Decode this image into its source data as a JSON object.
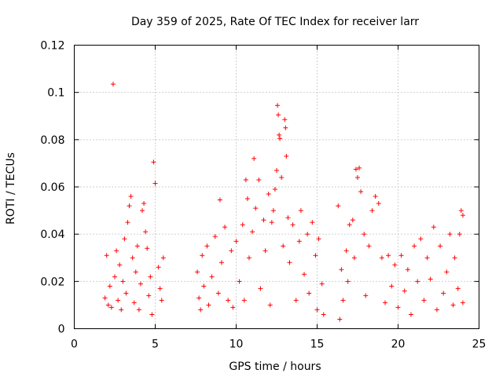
{
  "chart_data": {
    "type": "scatter",
    "title": "Day 359 of 2025, Rate Of TEC Index for receiver larr",
    "xlabel": "GPS time / hours",
    "ylabel": "ROTI / TECUs",
    "xlim": [
      0,
      25
    ],
    "ylim": [
      0,
      0.12
    ],
    "x_ticks": [
      "0",
      "5",
      "10",
      "15",
      "20",
      "25"
    ],
    "y_ticks": [
      "0",
      "0.02",
      "0.04",
      "0.06",
      "0.08",
      "0.1",
      "0.12"
    ],
    "grid": true,
    "marker": "+",
    "color": "#ff0000",
    "series": [
      {
        "points": [
          [
            1.9,
            0.013
          ],
          [
            2.0,
            0.031
          ],
          [
            2.1,
            0.01
          ],
          [
            2.2,
            0.018
          ],
          [
            2.3,
            0.009
          ],
          [
            2.4,
            0.1035
          ],
          [
            2.5,
            0.022
          ],
          [
            2.6,
            0.033
          ],
          [
            2.7,
            0.012
          ],
          [
            2.8,
            0.027
          ],
          [
            2.9,
            0.008
          ],
          [
            3.0,
            0.02
          ],
          [
            3.1,
            0.038
          ],
          [
            3.2,
            0.015
          ],
          [
            3.3,
            0.045
          ],
          [
            3.4,
            0.052
          ],
          [
            3.5,
            0.056
          ],
          [
            3.6,
            0.03
          ],
          [
            3.7,
            0.011
          ],
          [
            3.8,
            0.024
          ],
          [
            3.9,
            0.035
          ],
          [
            4.0,
            0.008
          ],
          [
            4.1,
            0.019
          ],
          [
            4.2,
            0.05
          ],
          [
            4.3,
            0.053
          ],
          [
            4.4,
            0.041
          ],
          [
            4.5,
            0.034
          ],
          [
            4.6,
            0.014
          ],
          [
            4.7,
            0.022
          ],
          [
            4.8,
            0.006
          ],
          [
            4.9,
            0.0705
          ],
          [
            5.0,
            0.0615
          ],
          [
            5.2,
            0.026
          ],
          [
            5.3,
            0.017
          ],
          [
            5.4,
            0.012
          ],
          [
            5.5,
            0.03
          ],
          [
            7.6,
            0.024
          ],
          [
            7.7,
            0.013
          ],
          [
            7.8,
            0.008
          ],
          [
            7.9,
            0.031
          ],
          [
            8.0,
            0.018
          ],
          [
            8.2,
            0.035
          ],
          [
            8.3,
            0.01
          ],
          [
            8.5,
            0.022
          ],
          [
            8.7,
            0.039
          ],
          [
            8.9,
            0.015
          ],
          [
            9.0,
            0.0545
          ],
          [
            9.1,
            0.028
          ],
          [
            9.3,
            0.043
          ],
          [
            9.5,
            0.012
          ],
          [
            9.7,
            0.033
          ],
          [
            9.8,
            0.009
          ],
          [
            10.0,
            0.037
          ],
          [
            10.2,
            0.02
          ],
          [
            10.4,
            0.044
          ],
          [
            10.5,
            0.012
          ],
          [
            10.6,
            0.063
          ],
          [
            10.7,
            0.055
          ],
          [
            10.8,
            0.03
          ],
          [
            11.0,
            0.041
          ],
          [
            11.1,
            0.072
          ],
          [
            11.2,
            0.051
          ],
          [
            11.4,
            0.063
          ],
          [
            11.5,
            0.017
          ],
          [
            11.7,
            0.046
          ],
          [
            11.8,
            0.033
          ],
          [
            12.0,
            0.057
          ],
          [
            12.1,
            0.01
          ],
          [
            12.2,
            0.045
          ],
          [
            12.3,
            0.05
          ],
          [
            12.4,
            0.059
          ],
          [
            12.5,
            0.067
          ],
          [
            12.55,
            0.0945
          ],
          [
            12.6,
            0.0905
          ],
          [
            12.65,
            0.082
          ],
          [
            12.7,
            0.0805
          ],
          [
            12.8,
            0.064
          ],
          [
            12.9,
            0.035
          ],
          [
            13.0,
            0.0885
          ],
          [
            13.05,
            0.085
          ],
          [
            13.1,
            0.073
          ],
          [
            13.2,
            0.047
          ],
          [
            13.3,
            0.028
          ],
          [
            13.5,
            0.044
          ],
          [
            13.7,
            0.012
          ],
          [
            13.9,
            0.037
          ],
          [
            14.0,
            0.05
          ],
          [
            14.2,
            0.023
          ],
          [
            14.4,
            0.04
          ],
          [
            14.5,
            0.015
          ],
          [
            14.7,
            0.045
          ],
          [
            14.9,
            0.031
          ],
          [
            15.0,
            0.008
          ],
          [
            15.1,
            0.038
          ],
          [
            15.3,
            0.019
          ],
          [
            15.4,
            0.006
          ],
          [
            16.3,
            0.052
          ],
          [
            16.4,
            0.004
          ],
          [
            16.5,
            0.025
          ],
          [
            16.6,
            0.012
          ],
          [
            16.8,
            0.033
          ],
          [
            16.9,
            0.02
          ],
          [
            17.0,
            0.044
          ],
          [
            17.2,
            0.046
          ],
          [
            17.3,
            0.03
          ],
          [
            17.4,
            0.0675
          ],
          [
            17.5,
            0.064
          ],
          [
            17.6,
            0.068
          ],
          [
            17.7,
            0.058
          ],
          [
            17.9,
            0.04
          ],
          [
            18.0,
            0.014
          ],
          [
            18.2,
            0.035
          ],
          [
            18.4,
            0.05
          ],
          [
            18.6,
            0.056
          ],
          [
            18.8,
            0.053
          ],
          [
            19.0,
            0.03
          ],
          [
            19.2,
            0.011
          ],
          [
            19.4,
            0.031
          ],
          [
            19.6,
            0.018
          ],
          [
            19.8,
            0.027
          ],
          [
            20.0,
            0.009
          ],
          [
            20.2,
            0.031
          ],
          [
            20.4,
            0.016
          ],
          [
            20.6,
            0.025
          ],
          [
            20.8,
            0.006
          ],
          [
            21.0,
            0.035
          ],
          [
            21.2,
            0.02
          ],
          [
            21.4,
            0.038
          ],
          [
            21.6,
            0.012
          ],
          [
            21.8,
            0.03
          ],
          [
            22.0,
            0.021
          ],
          [
            22.2,
            0.043
          ],
          [
            22.4,
            0.008
          ],
          [
            22.6,
            0.035
          ],
          [
            22.8,
            0.015
          ],
          [
            23.0,
            0.024
          ],
          [
            23.2,
            0.04
          ],
          [
            23.4,
            0.01
          ],
          [
            23.5,
            0.03
          ],
          [
            23.7,
            0.017
          ],
          [
            23.8,
            0.04
          ],
          [
            23.9,
            0.05
          ],
          [
            24.0,
            0.048
          ],
          [
            24.0,
            0.011
          ]
        ]
      }
    ]
  }
}
